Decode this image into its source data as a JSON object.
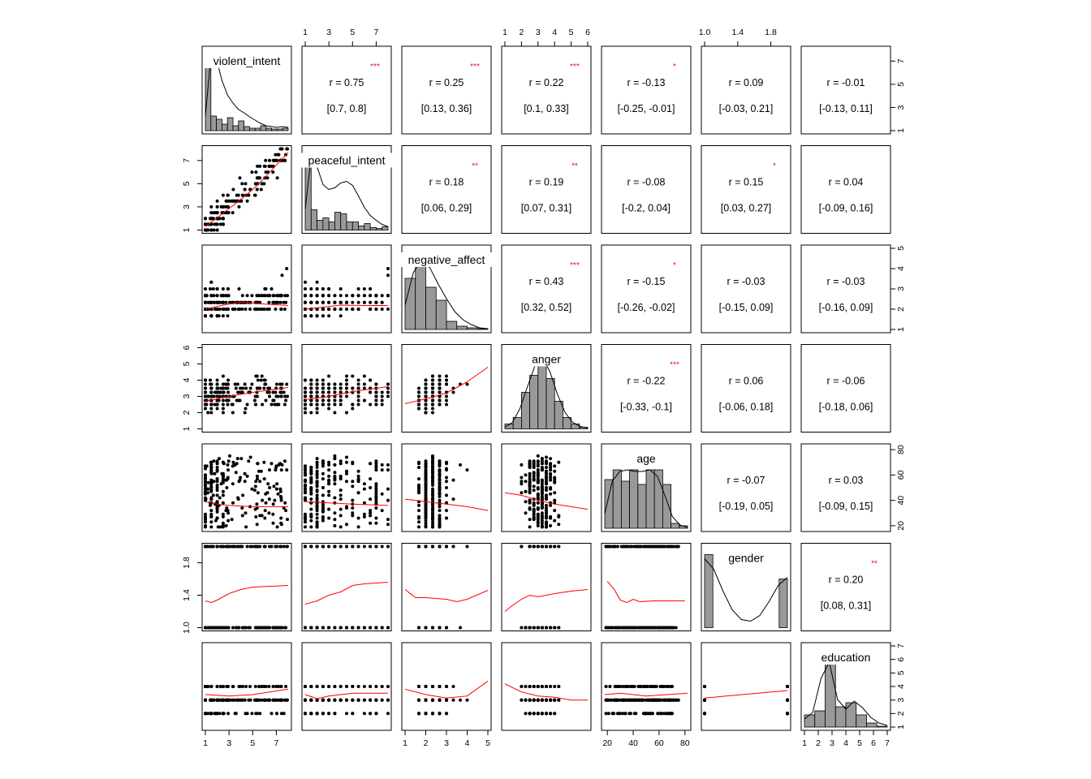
{
  "chart_data": {
    "type": "scatter-matrix",
    "title": "",
    "variables": [
      "violent_intent",
      "peaceful_intent",
      "negative_affect",
      "anger",
      "age",
      "gender",
      "education"
    ],
    "ranges": {
      "violent_intent": [
        1,
        8
      ],
      "peaceful_intent": [
        1,
        8
      ],
      "negative_affect": [
        1,
        5
      ],
      "anger": [
        1,
        6
      ],
      "age": [
        18,
        82
      ],
      "gender": [
        1,
        2
      ],
      "education": [
        1,
        7
      ]
    },
    "ticks": {
      "violent_intent": [
        1,
        3,
        5,
        7
      ],
      "peaceful_intent": [
        1,
        3,
        5,
        7
      ],
      "negative_affect": [
        1,
        2,
        3,
        4,
        5
      ],
      "anger": [
        1,
        2,
        3,
        4,
        5,
        6
      ],
      "age": [
        20,
        40,
        60,
        80
      ],
      "gender": [
        1.0,
        1.4,
        1.8
      ],
      "education": [
        1,
        2,
        3,
        4,
        5,
        6,
        7
      ]
    },
    "correlations": [
      {
        "row": 0,
        "col": 1,
        "r": "r  = 0.75",
        "ci": "[0.7, 0.8]",
        "stars": "***"
      },
      {
        "row": 0,
        "col": 2,
        "r": "r  = 0.25",
        "ci": "[0.13, 0.36]",
        "stars": "***"
      },
      {
        "row": 0,
        "col": 3,
        "r": "r  = 0.22",
        "ci": "[0.1, 0.33]",
        "stars": "***"
      },
      {
        "row": 0,
        "col": 4,
        "r": "r  = -0.13",
        "ci": "[-0.25, -0.01]",
        "stars": "*"
      },
      {
        "row": 0,
        "col": 5,
        "r": "r  = 0.09",
        "ci": "[-0.03, 0.21]",
        "stars": ""
      },
      {
        "row": 0,
        "col": 6,
        "r": "r  = -0.01",
        "ci": "[-0.13, 0.11]",
        "stars": ""
      },
      {
        "row": 1,
        "col": 2,
        "r": "r  = 0.18",
        "ci": "[0.06, 0.29]",
        "stars": "**"
      },
      {
        "row": 1,
        "col": 3,
        "r": "r  = 0.19",
        "ci": "[0.07, 0.31]",
        "stars": "**"
      },
      {
        "row": 1,
        "col": 4,
        "r": "r  = -0.08",
        "ci": "[-0.2, 0.04]",
        "stars": ""
      },
      {
        "row": 1,
        "col": 5,
        "r": "r  = 0.15",
        "ci": "[0.03, 0.27]",
        "stars": "*"
      },
      {
        "row": 1,
        "col": 6,
        "r": "r  = 0.04",
        "ci": "[-0.09, 0.16]",
        "stars": ""
      },
      {
        "row": 2,
        "col": 3,
        "r": "r  = 0.43",
        "ci": "[0.32, 0.52]",
        "stars": "***"
      },
      {
        "row": 2,
        "col": 4,
        "r": "r  = -0.15",
        "ci": "[-0.26, -0.02]",
        "stars": "*"
      },
      {
        "row": 2,
        "col": 5,
        "r": "r  = -0.03",
        "ci": "[-0.15, 0.09]",
        "stars": ""
      },
      {
        "row": 2,
        "col": 6,
        "r": "r  = -0.03",
        "ci": "[-0.16, 0.09]",
        "stars": ""
      },
      {
        "row": 3,
        "col": 4,
        "r": "r  = -0.22",
        "ci": "[-0.33, -0.1]",
        "stars": "***"
      },
      {
        "row": 3,
        "col": 5,
        "r": "r  = 0.06",
        "ci": "[-0.06, 0.18]",
        "stars": ""
      },
      {
        "row": 3,
        "col": 6,
        "r": "r  = -0.06",
        "ci": "[-0.18, 0.06]",
        "stars": ""
      },
      {
        "row": 4,
        "col": 5,
        "r": "r  = -0.07",
        "ci": "[-0.19, 0.05]",
        "stars": ""
      },
      {
        "row": 4,
        "col": 6,
        "r": "r  = 0.03",
        "ci": "[-0.09, 0.15]",
        "stars": ""
      },
      {
        "row": 5,
        "col": 6,
        "r": "r  = 0.20",
        "ci": "[0.08, 0.31]",
        "stars": "**"
      }
    ],
    "histograms": {
      "violent_intent": [
        0.9,
        0.18,
        0.14,
        0.08,
        0.16,
        0.06,
        0.12,
        0.05,
        0.03,
        0.03,
        0.06,
        0.03,
        0.02,
        0.02,
        0.03
      ],
      "peaceful_intent": [
        0.9,
        0.25,
        0.12,
        0.15,
        0.1,
        0.22,
        0.2,
        0.1,
        0.1,
        0.05,
        0.08,
        0.03,
        0.02,
        0.04
      ],
      "negative_affect": [
        0.63,
        0.88,
        0.52,
        0.36,
        0.1,
        0.04,
        0.02,
        0.01
      ],
      "anger": [
        0.06,
        0.14,
        0.45,
        0.66,
        0.88,
        0.62,
        0.34,
        0.14,
        0.06,
        0.02
      ],
      "age": [
        0.6,
        0.72,
        0.58,
        0.72,
        0.54,
        0.72,
        0.72,
        0.54,
        0.06,
        0.03
      ],
      "gender": [
        0.9,
        0.0,
        0.0,
        0.0,
        0.0,
        0.0,
        0.0,
        0.0,
        0.0,
        0.6
      ],
      "education": [
        0.15,
        0.2,
        0.8,
        0.25,
        0.3,
        0.15,
        0.05,
        0.01
      ]
    },
    "density": {
      "violent_intent": [
        0.18,
        0.92,
        0.88,
        0.62,
        0.44,
        0.34,
        0.26,
        0.22,
        0.17,
        0.13,
        0.09,
        0.06,
        0.05,
        0.04,
        0.05,
        0.04
      ],
      "peaceful_intent": [
        0.26,
        0.9,
        0.78,
        0.56,
        0.5,
        0.52,
        0.58,
        0.6,
        0.55,
        0.42,
        0.28,
        0.18,
        0.12,
        0.07,
        0.04
      ],
      "negative_affect": [
        0.3,
        0.7,
        0.86,
        0.76,
        0.56,
        0.38,
        0.22,
        0.12,
        0.06,
        0.02,
        0.01
      ],
      "anger": [
        0.02,
        0.08,
        0.25,
        0.52,
        0.78,
        0.88,
        0.7,
        0.42,
        0.2,
        0.08,
        0.03,
        0.01
      ],
      "age": [
        0.18,
        0.58,
        0.7,
        0.72,
        0.7,
        0.7,
        0.72,
        0.64,
        0.4,
        0.14,
        0.04,
        0.01
      ],
      "gender": [
        0.85,
        0.72,
        0.45,
        0.22,
        0.1,
        0.08,
        0.15,
        0.32,
        0.52,
        0.62
      ],
      "education": [
        0.1,
        0.18,
        0.6,
        0.8,
        0.34,
        0.22,
        0.32,
        0.24,
        0.12,
        0.05,
        0.02
      ]
    },
    "loess": {
      "1-0": [
        [
          1,
          1.3
        ],
        [
          2,
          2.05
        ],
        [
          3,
          2.85
        ],
        [
          4,
          3.65
        ],
        [
          5,
          4.5
        ],
        [
          6,
          5.5
        ],
        [
          7,
          6.6
        ],
        [
          8,
          7.7
        ]
      ],
      "2-0": [
        [
          1,
          2.0
        ],
        [
          2.5,
          2.2
        ],
        [
          4,
          2.35
        ],
        [
          6,
          2.25
        ],
        [
          8,
          2.18
        ]
      ],
      "2-1": [
        [
          1,
          2.0
        ],
        [
          2.5,
          2.1
        ],
        [
          4,
          2.2
        ],
        [
          6,
          2.18
        ],
        [
          8,
          2.18
        ]
      ],
      "3-0": [
        [
          1,
          2.7
        ],
        [
          2,
          2.85
        ],
        [
          3,
          3.0
        ],
        [
          5,
          3.25
        ],
        [
          8,
          3.55
        ]
      ],
      "3-1": [
        [
          1,
          2.8
        ],
        [
          3,
          3.0
        ],
        [
          5,
          3.3
        ],
        [
          8,
          3.6
        ]
      ],
      "3-2": [
        [
          1,
          2.55
        ],
        [
          2,
          2.85
        ],
        [
          3,
          3.2
        ],
        [
          4,
          3.9
        ],
        [
          5,
          4.8
        ]
      ],
      "4-0": [
        [
          1,
          39
        ],
        [
          2,
          37
        ],
        [
          3,
          36
        ],
        [
          5,
          35
        ],
        [
          8,
          35
        ]
      ],
      "4-1": [
        [
          1,
          39
        ],
        [
          3,
          38
        ],
        [
          5,
          37
        ],
        [
          8,
          36
        ]
      ],
      "4-2": [
        [
          1,
          41
        ],
        [
          2,
          39
        ],
        [
          3,
          37
        ],
        [
          4,
          35
        ],
        [
          5,
          32
        ]
      ],
      "4-3": [
        [
          1,
          46
        ],
        [
          2,
          44
        ],
        [
          3,
          40
        ],
        [
          4,
          37
        ],
        [
          5,
          35
        ],
        [
          6,
          33
        ]
      ],
      "5-0": [
        [
          1,
          1.33
        ],
        [
          1.5,
          1.31
        ],
        [
          2,
          1.34
        ],
        [
          3,
          1.42
        ],
        [
          4,
          1.47
        ],
        [
          5,
          1.5
        ],
        [
          8,
          1.52
        ]
      ],
      "5-1": [
        [
          1,
          1.29
        ],
        [
          2,
          1.33
        ],
        [
          3,
          1.4
        ],
        [
          4,
          1.44
        ],
        [
          5,
          1.52
        ],
        [
          6,
          1.54
        ],
        [
          8,
          1.56
        ]
      ],
      "5-2": [
        [
          1,
          1.47
        ],
        [
          1.5,
          1.37
        ],
        [
          2,
          1.37
        ],
        [
          3,
          1.35
        ],
        [
          3.5,
          1.32
        ],
        [
          4,
          1.35
        ],
        [
          5,
          1.46
        ]
      ],
      "5-3": [
        [
          1,
          1.2
        ],
        [
          1.5,
          1.28
        ],
        [
          2,
          1.35
        ],
        [
          2.5,
          1.4
        ],
        [
          3,
          1.38
        ],
        [
          4,
          1.42
        ],
        [
          5,
          1.45
        ],
        [
          6,
          1.47
        ]
      ],
      "5-4": [
        [
          20,
          1.57
        ],
        [
          25,
          1.48
        ],
        [
          30,
          1.34
        ],
        [
          35,
          1.31
        ],
        [
          40,
          1.35
        ],
        [
          45,
          1.32
        ],
        [
          55,
          1.33
        ],
        [
          80,
          1.33
        ]
      ],
      "6-0": [
        [
          1,
          3.4
        ],
        [
          3,
          3.3
        ],
        [
          5,
          3.4
        ],
        [
          8,
          3.8
        ]
      ],
      "6-1": [
        [
          1,
          3.4
        ],
        [
          2,
          3.1
        ],
        [
          3,
          3.3
        ],
        [
          5,
          3.5
        ],
        [
          8,
          3.5
        ]
      ],
      "6-2": [
        [
          1,
          3.8
        ],
        [
          2,
          3.4
        ],
        [
          3,
          3.15
        ],
        [
          4,
          3.3
        ],
        [
          5,
          4.4
        ]
      ],
      "6-3": [
        [
          1,
          4.2
        ],
        [
          2,
          3.6
        ],
        [
          3,
          3.3
        ],
        [
          4,
          3.2
        ],
        [
          5,
          3.0
        ],
        [
          6,
          3.0
        ]
      ],
      "6-4": [
        [
          18,
          3.4
        ],
        [
          30,
          3.5
        ],
        [
          50,
          3.3
        ],
        [
          82,
          3.5
        ]
      ],
      "6-5": [
        [
          1,
          3.15
        ],
        [
          2,
          3.7
        ]
      ]
    },
    "scatter_seed": 20240131
  }
}
